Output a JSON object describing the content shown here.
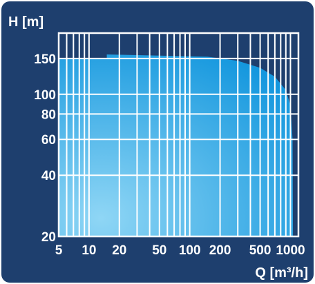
{
  "chart_data": {
    "type": "area",
    "title": "",
    "xlabel": "Q [m³/h]",
    "ylabel": "H [m]",
    "x_scale": "log",
    "y_scale": "log",
    "xlim": [
      5,
      1200
    ],
    "ylim": [
      20,
      200
    ],
    "grid": true,
    "x_ticks": [
      5,
      10,
      20,
      50,
      100,
      200,
      500,
      1000
    ],
    "x_tick_labels": [
      "5",
      "10",
      "20",
      "50",
      "100",
      "200",
      "500",
      "1000"
    ],
    "y_ticks": [
      20,
      40,
      60,
      80,
      100,
      150
    ],
    "y_tick_labels": [
      "20",
      "40",
      "60",
      "80",
      "100",
      "150"
    ],
    "series": [
      {
        "values": [
          {
            "x": 5,
            "y": 150
          },
          {
            "x": 15,
            "y": 150
          },
          {
            "x": 15,
            "y": 157
          },
          {
            "x": 150,
            "y": 153
          },
          {
            "x": 300,
            "y": 146
          },
          {
            "x": 500,
            "y": 135
          },
          {
            "x": 700,
            "y": 122
          },
          {
            "x": 900,
            "y": 105
          },
          {
            "x": 1000,
            "y": 88
          },
          {
            "x": 1050,
            "y": 60
          },
          {
            "x": 1060,
            "y": 20
          },
          {
            "x": 5,
            "y": 20
          }
        ]
      }
    ]
  },
  "colors": {
    "frame": "#1e3f6e",
    "grid": "#ffffff",
    "area_light": "#8fd6f5",
    "area_dark": "#1497de"
  }
}
